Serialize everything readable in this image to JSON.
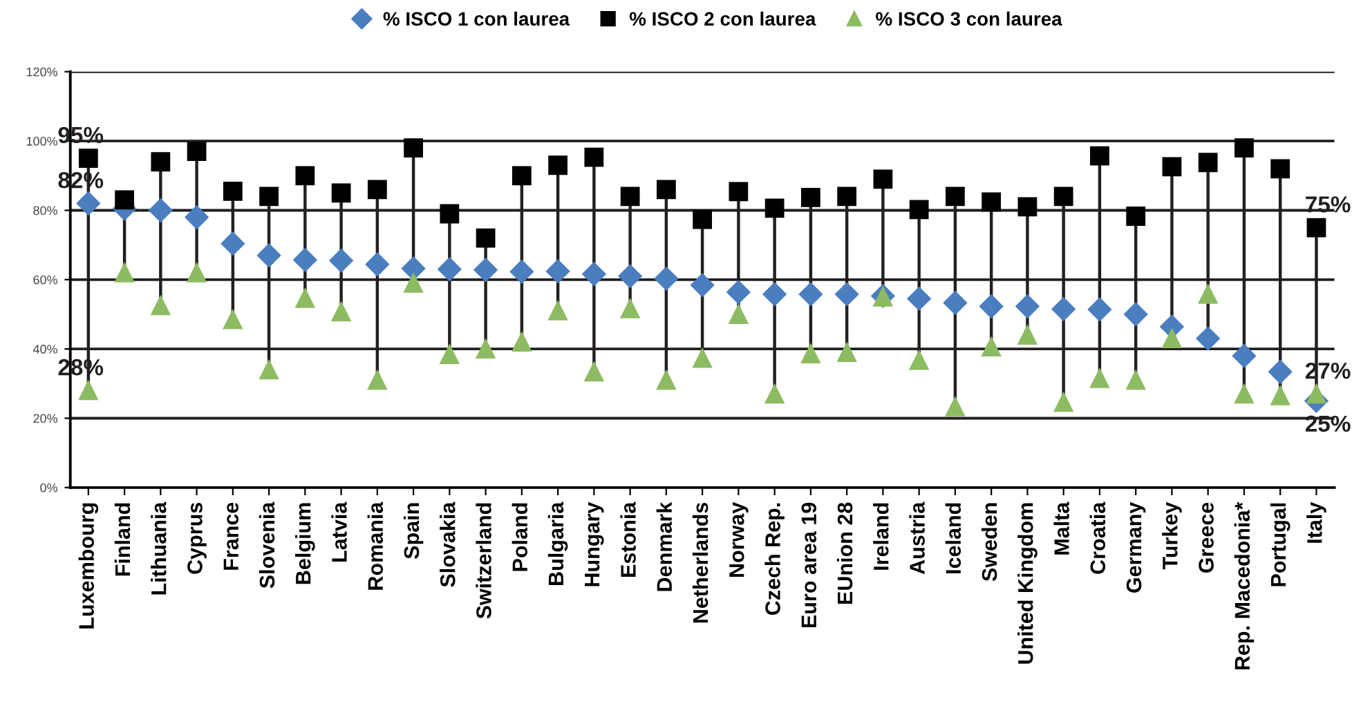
{
  "chart_data": {
    "type": "scatter",
    "categories": [
      "Luxembourg",
      "Finland",
      "Lithuania",
      "Cyprus",
      "France",
      "Slovenia",
      "Belgium",
      "Latvia",
      "Romania",
      "Spain",
      "Slovakia",
      "Switzerland",
      "Poland",
      "Bulgaria",
      "Hungary",
      "Estonia",
      "Denmark",
      "Netherlands",
      "Norway",
      "Czech Rep.",
      "Euro area 19",
      "EUnion 28",
      "Ireland",
      "Austria",
      "Iceland",
      "Sweden",
      "United Kingdom",
      "Malta",
      "Croatia",
      "Germany",
      "Turkey",
      "Greece",
      "Rep. Macedonia*",
      "Portugal",
      "Italy"
    ],
    "series": [
      {
        "name": "% ISCO 1 con laurea",
        "color": "#4a7ebf",
        "marker": "diamond",
        "values": [
          82,
          80.5,
          80,
          78,
          70.4,
          67,
          65.7,
          65.5,
          64.4,
          63.2,
          63,
          62.8,
          62.3,
          62.4,
          61.6,
          61,
          60.3,
          58.4,
          56.4,
          55.8,
          55.8,
          55.8,
          55.3,
          54.5,
          53.3,
          52.3,
          52.3,
          51.5,
          51.4,
          50,
          46.4,
          43,
          38,
          33.4,
          25
        ]
      },
      {
        "name": "% ISCO 2 con laurea",
        "color": "#000000",
        "marker": "square",
        "values": [
          95,
          83,
          94,
          97,
          85.5,
          84,
          90,
          85,
          86,
          98,
          79,
          72,
          90,
          93,
          95.3,
          84,
          86,
          77.4,
          85.4,
          80.6,
          83.7,
          84,
          89,
          80.2,
          84,
          82.4,
          81,
          84,
          95.7,
          78.3,
          92.6,
          93.8,
          98,
          92,
          75
        ]
      },
      {
        "name": "% ISCO 3 con laurea",
        "color": "#8dbb62",
        "marker": "triangle",
        "values": [
          28,
          62,
          52.5,
          62,
          48.5,
          34,
          54.6,
          50.7,
          31,
          59,
          38.4,
          40,
          42,
          51,
          33.4,
          51.6,
          31,
          37.3,
          50,
          27,
          38.6,
          39,
          55,
          36.7,
          23.3,
          40.6,
          44,
          24.6,
          31.5,
          31,
          43,
          55.8,
          27,
          26.5,
          27
        ]
      }
    ],
    "ylim": [
      0,
      120
    ],
    "yticks": [
      {
        "value": 0,
        "label": "0%"
      },
      {
        "value": 20,
        "label": "20%"
      },
      {
        "value": 40,
        "label": "40%"
      },
      {
        "value": 60,
        "label": "60%"
      },
      {
        "value": 80,
        "label": "80%"
      },
      {
        "value": 100,
        "label": "100%"
      },
      {
        "value": 120,
        "label": "120%"
      }
    ],
    "grid": "y",
    "legend": "top",
    "annotations": [
      {
        "text": "95%",
        "x": "Luxembourg",
        "y": 95
      },
      {
        "text": "82%",
        "x": "Luxembourg",
        "y": 82
      },
      {
        "text": "28%",
        "x": "Luxembourg",
        "y": 28
      },
      {
        "text": "75%",
        "x": "Italy",
        "y": 75
      },
      {
        "text": "27%",
        "x": "Italy",
        "y": 27
      },
      {
        "text": "25%",
        "x": "Italy",
        "y": 25
      }
    ]
  }
}
